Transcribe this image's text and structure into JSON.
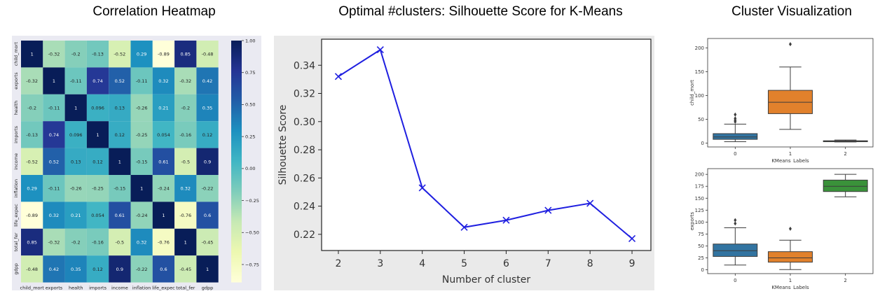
{
  "titles": {
    "heatmap": "Correlation Heatmap",
    "silhouette": "Optimal #clusters: Silhouette Score for K-Means",
    "clusters": "Cluster Visualization"
  },
  "chart_data": [
    {
      "type": "heatmap",
      "title": "Correlation Heatmap",
      "labels": [
        "child_mort",
        "exports",
        "health",
        "imports",
        "income",
        "inflation",
        "life_expec",
        "total_fer",
        "gdpp"
      ],
      "matrix": [
        [
          1,
          -0.32,
          -0.2,
          -0.13,
          -0.52,
          0.29,
          -0.89,
          0.85,
          -0.48
        ],
        [
          -0.32,
          1,
          -0.11,
          0.74,
          0.52,
          -0.11,
          0.32,
          -0.32,
          0.42
        ],
        [
          -0.2,
          -0.11,
          1,
          0.096,
          0.13,
          -0.26,
          0.21,
          -0.2,
          0.35
        ],
        [
          -0.13,
          0.74,
          0.096,
          1,
          0.12,
          -0.25,
          0.054,
          -0.16,
          0.12
        ],
        [
          -0.52,
          0.52,
          0.13,
          0.12,
          1,
          -0.15,
          0.61,
          -0.5,
          0.9
        ],
        [
          0.29,
          -0.11,
          -0.26,
          -0.25,
          -0.15,
          1,
          -0.24,
          0.32,
          -0.22
        ],
        [
          -0.89,
          0.32,
          0.21,
          0.054,
          0.61,
          -0.24,
          1,
          -0.76,
          0.6
        ],
        [
          0.85,
          -0.32,
          -0.2,
          -0.16,
          -0.5,
          0.32,
          -0.76,
          1,
          -0.45
        ],
        [
          -0.48,
          0.42,
          0.35,
          0.12,
          0.9,
          -0.22,
          0.6,
          -0.45,
          1
        ]
      ],
      "colorbar_ticks": [
        "1.00",
        "0.75",
        "0.50",
        "0.25",
        "0.00",
        "−0.25",
        "−0.50",
        "−0.75"
      ],
      "colorbar_values": [
        1,
        0.75,
        0.5,
        0.25,
        0,
        -0.25,
        -0.5,
        -0.75
      ],
      "vmin": -0.89,
      "vmax": 1,
      "colormap": "YlGnBu",
      "colormap_stops": [
        "#ffffd9",
        "#edf8b1",
        "#c7e9b4",
        "#7fcdbb",
        "#41b6c4",
        "#1d91c0",
        "#225ea8",
        "#253494",
        "#081d58"
      ]
    },
    {
      "type": "line",
      "title": "Optimal #clusters: Silhouette Score for K-Means",
      "xlabel": "Number of cluster",
      "ylabel": "Silhouette Score",
      "x": [
        2,
        3,
        4,
        5,
        6,
        7,
        8,
        9
      ],
      "y": [
        0.332,
        0.351,
        0.253,
        0.225,
        0.23,
        0.237,
        0.242,
        0.217
      ],
      "xlim": [
        1.6,
        9.45
      ],
      "ylim": [
        0.2085,
        0.3585
      ],
      "yticks": [
        "0.22",
        "0.24",
        "0.26",
        "0.28",
        "0.30",
        "0.32",
        "0.34"
      ],
      "ytick_values": [
        0.22,
        0.24,
        0.26,
        0.28,
        0.3,
        0.32,
        0.34
      ],
      "xticks": [
        "2",
        "3",
        "4",
        "5",
        "6",
        "7",
        "8",
        "9"
      ],
      "marker": "x",
      "color": "#1f1fe0"
    },
    {
      "type": "box",
      "xlabel": "KMeans_Labels",
      "ylabel": "child_mort",
      "categories": [
        "0",
        "1",
        "2"
      ],
      "ylim": [
        -8,
        220
      ],
      "yticks": [
        "0",
        "50",
        "100",
        "150",
        "200"
      ],
      "ytick_values": [
        0,
        50,
        100,
        150,
        200
      ],
      "boxes": [
        {
          "whislo": 3,
          "q1": 8,
          "med": 13,
          "q3": 20,
          "whishi": 40,
          "fliers": [
            45,
            48,
            52,
            60
          ]
        },
        {
          "whislo": 29,
          "q1": 62,
          "med": 86,
          "q3": 111,
          "whishi": 160,
          "fliers": [
            208
          ]
        },
        {
          "whislo": 2.5,
          "q1": 3,
          "med": 4,
          "q3": 5,
          "whishi": 6.5,
          "fliers": []
        }
      ],
      "colors": [
        "#3274a1",
        "#e1812c",
        "#3a923a"
      ]
    },
    {
      "type": "box",
      "xlabel": "KMeans_Labels",
      "ylabel": "exports",
      "categories": [
        "0",
        "1",
        "2"
      ],
      "ylim": [
        -8,
        212
      ],
      "yticks": [
        "0",
        "25",
        "50",
        "75",
        "100",
        "125",
        "150",
        "175",
        "200"
      ],
      "ytick_values": [
        0,
        25,
        50,
        75,
        100,
        125,
        150,
        175,
        200
      ],
      "boxes": [
        {
          "whislo": 10,
          "q1": 28,
          "med": 40,
          "q3": 54,
          "whishi": 88,
          "fliers": [
            97,
            104
          ]
        },
        {
          "whislo": 0.5,
          "q1": 16,
          "med": 25,
          "q3": 38,
          "whishi": 62,
          "fliers": [
            86
          ]
        },
        {
          "whislo": 153,
          "q1": 164,
          "med": 175,
          "q3": 188,
          "whishi": 200,
          "fliers": []
        }
      ],
      "colors": [
        "#3274a1",
        "#e1812c",
        "#3a923a"
      ]
    }
  ]
}
